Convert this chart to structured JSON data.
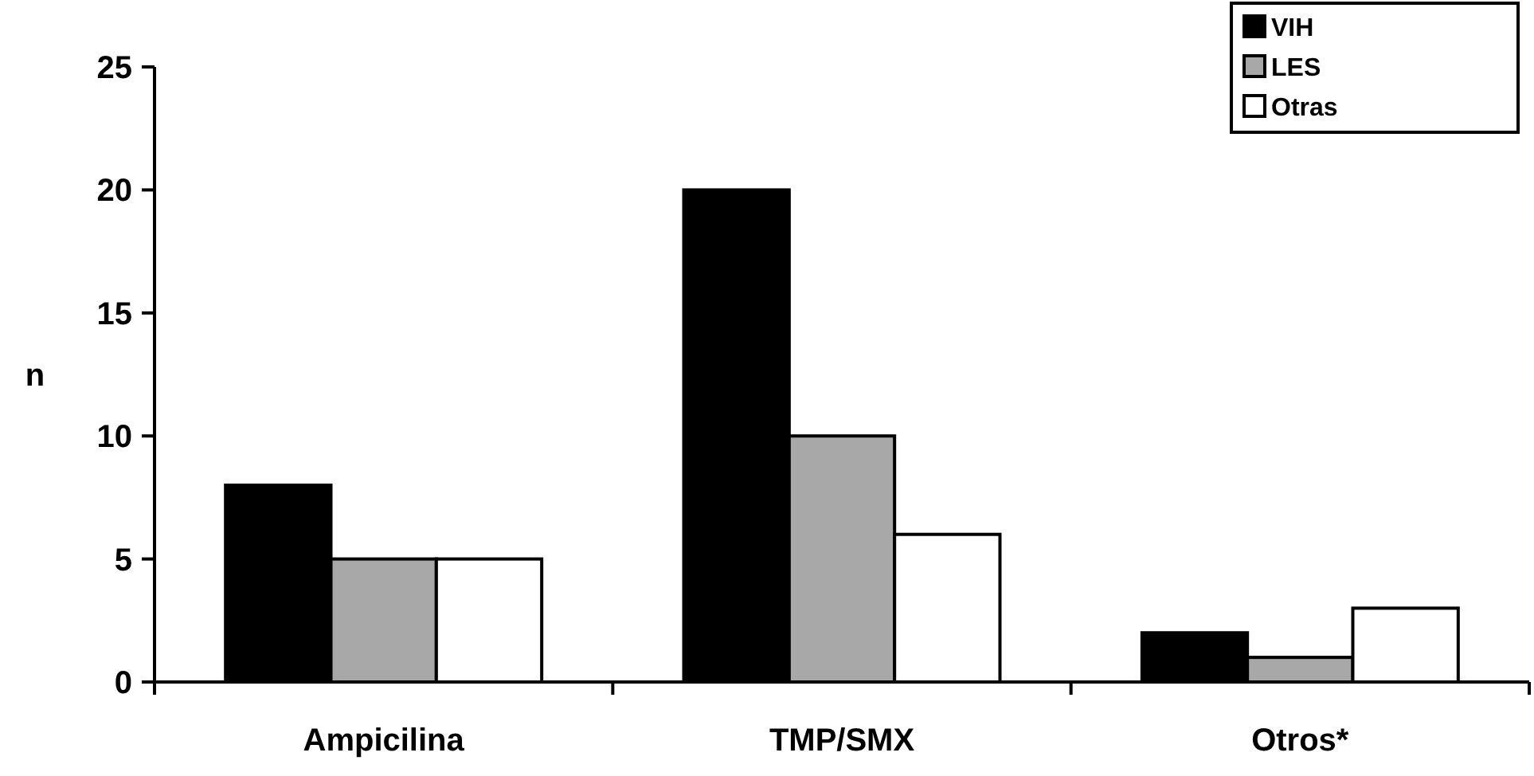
{
  "chart_data": {
    "type": "bar",
    "categories": [
      "Ampicilina",
      "TMP/SMX",
      "Otros*"
    ],
    "ylabel": "n",
    "ylim": [
      0,
      25
    ],
    "yticks": [
      0,
      5,
      10,
      15,
      20,
      25
    ],
    "grid": false,
    "legend": "top right",
    "series": [
      {
        "name": "VIH",
        "color": "#000000",
        "values": [
          8,
          20,
          2
        ]
      },
      {
        "name": "LES",
        "color": "#a8a8a8",
        "values": [
          5,
          10,
          1
        ]
      },
      {
        "name": "Otras",
        "color": "#ffffff",
        "values": [
          5,
          6,
          3
        ]
      }
    ]
  }
}
